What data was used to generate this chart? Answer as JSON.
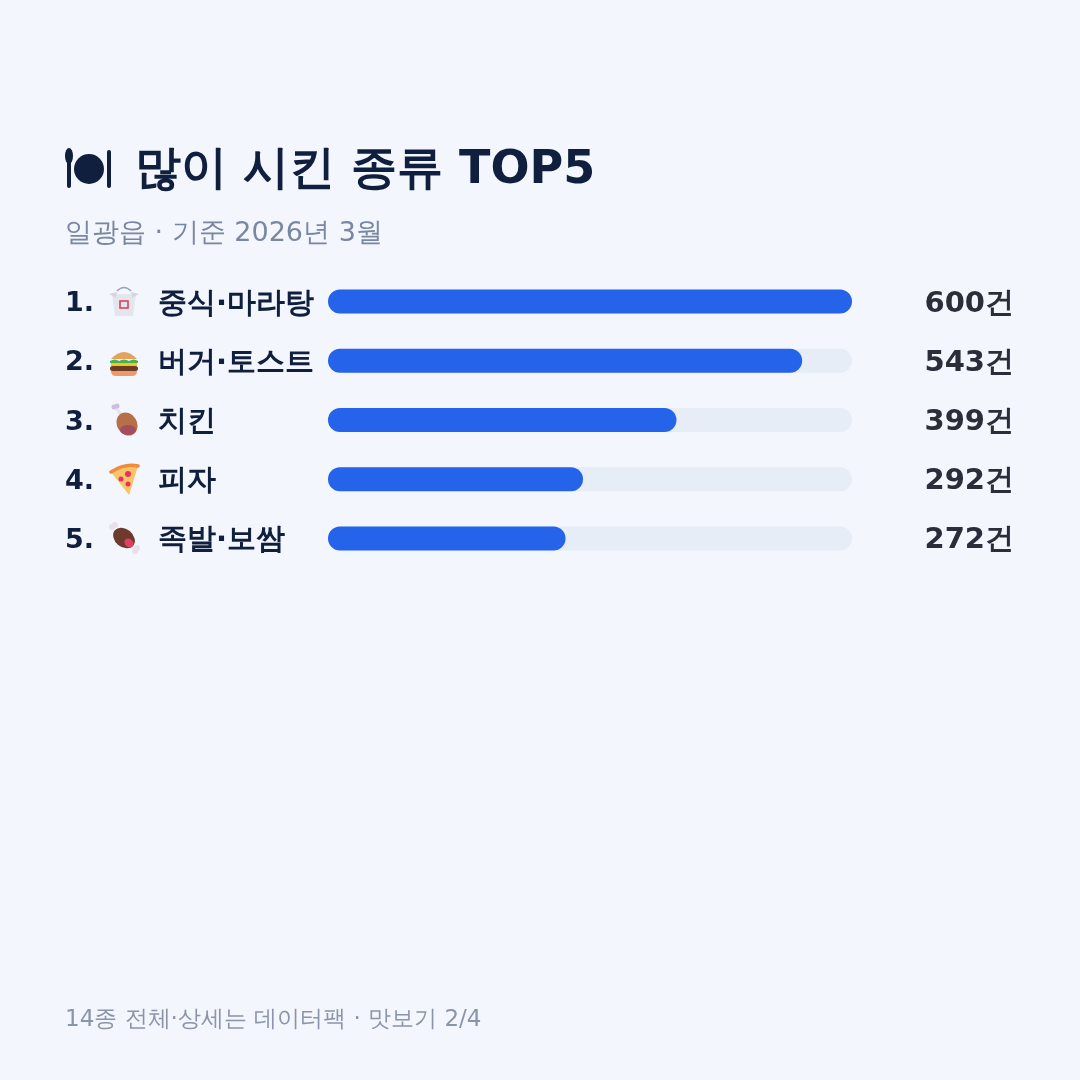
{
  "chart_data": {
    "type": "bar",
    "orientation": "horizontal",
    "title": "많이 시킨 종류 TOP5",
    "subtitle": "일광읍 · 기준 2026년 3월",
    "annotations": [
      "14종 전체·상세는 데이터팩 · 맛보기 2/4"
    ],
    "categories": [
      "1. 중식·마라탕",
      "2. 버거·토스트",
      "3. 치킨",
      "4. 피자",
      "5. 족발·보쌈"
    ],
    "values": [
      600,
      543,
      399,
      292,
      272
    ],
    "value_labels": [
      "600건",
      "543건",
      "399건",
      "292건",
      "272건"
    ],
    "color": "#2563eb",
    "xlim": [
      0,
      600
    ],
    "tick_labels": "y"
  }
}
